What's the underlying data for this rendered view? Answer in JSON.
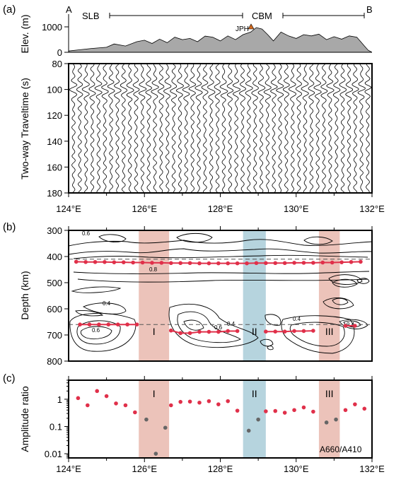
{
  "colors": {
    "hit_red": "#e0304a",
    "hit_gray": "#666666",
    "band_red": "#e9b9ae",
    "band_blue": "#a9cdd8",
    "topo_fill": "#a8a8a8",
    "trace": "#000000"
  },
  "chart_data": [
    {
      "panel": "(a)",
      "type": "area",
      "ylabel": "Elev. (m)",
      "ylim": [
        0,
        1400
      ],
      "yticks": [
        "0",
        "1000"
      ],
      "xlim": [
        124,
        132
      ],
      "end_labels": [
        "A",
        "B"
      ],
      "region_labels": [
        "SLB",
        "CBM"
      ],
      "station_label": "JPH",
      "x": [
        124.0,
        124.3,
        124.6,
        125.0,
        125.2,
        125.5,
        125.8,
        126.0,
        126.2,
        126.4,
        126.6,
        126.8,
        127.0,
        127.2,
        127.4,
        127.6,
        127.8,
        128.0,
        128.2,
        128.4,
        128.6,
        128.8,
        128.95,
        129.1,
        129.25,
        129.4,
        129.6,
        129.8,
        130.0,
        130.2,
        130.4,
        130.6,
        130.8,
        131.0,
        131.2,
        131.4,
        131.6,
        131.8,
        131.9,
        132.0
      ],
      "elevation_m": [
        50,
        100,
        150,
        200,
        330,
        250,
        420,
        480,
        350,
        520,
        380,
        600,
        500,
        550,
        420,
        640,
        600,
        450,
        650,
        500,
        700,
        800,
        980,
        920,
        700,
        450,
        800,
        650,
        550,
        700,
        650,
        720,
        500,
        620,
        520,
        650,
        600,
        250,
        80,
        0
      ]
    },
    {
      "panel": "(a)",
      "type": "line",
      "ylabel": "Two-way Traveltime (s)",
      "ylim": [
        80,
        180
      ],
      "yticks": [
        "80",
        "100",
        "120",
        "140",
        "160",
        "180"
      ],
      "xlim": [
        124,
        132
      ],
      "xticks": [
        "124°E",
        "126°E",
        "128°E",
        "130°E",
        "132°E"
      ],
      "trace_count": 48
    },
    {
      "panel": "(b)",
      "type": "scatter",
      "ylabel": "Depth (km)",
      "ylim": [
        300,
        800
      ],
      "yticks": [
        "300",
        "400",
        "500",
        "600",
        "700",
        "800"
      ],
      "xlim": [
        124,
        132
      ],
      "reference_depths_km": [
        410,
        660
      ],
      "contour_labels": [
        "0.6",
        "0.8",
        "0.4",
        "0.4",
        "0.6",
        "0.6",
        "0.4",
        "0.4"
      ],
      "zones": [
        {
          "label": "I",
          "x0": 125.85,
          "x1": 126.65,
          "color": "red"
        },
        {
          "label": "II",
          "x0": 128.6,
          "x1": 129.2,
          "color": "blue"
        },
        {
          "label": "III",
          "x0": 130.6,
          "x1": 131.15,
          "color": "red"
        }
      ],
      "series": [
        {
          "x": [
            124.2,
            124.45,
            124.7,
            124.95,
            125.2,
            125.45,
            125.7,
            125.95,
            126.2,
            126.45,
            126.7,
            126.95,
            127.2,
            127.45,
            127.7,
            127.95,
            128.2,
            128.45,
            128.7,
            128.95,
            129.2,
            129.45,
            129.7,
            129.95,
            130.2,
            130.45,
            130.7,
            130.95,
            131.2,
            131.45,
            131.7
          ],
          "y": [
            420,
            421,
            421,
            421,
            422,
            422,
            423,
            423,
            424,
            424,
            425,
            425,
            425,
            426,
            426,
            426,
            426,
            426,
            426,
            425,
            425,
            425,
            425,
            424,
            424,
            424,
            423,
            423,
            422,
            421,
            420
          ]
        },
        {
          "x": [
            124.3,
            124.55,
            124.8,
            125.05,
            125.3,
            125.55,
            125.8,
            126.7,
            126.95,
            127.2,
            127.45,
            127.7,
            127.95,
            128.2,
            128.45,
            129.2,
            129.45,
            129.7,
            129.95,
            130.2,
            130.45,
            131.3,
            131.55
          ],
          "y": [
            660,
            660,
            660,
            660,
            660,
            660,
            660,
            683,
            693,
            693,
            688,
            688,
            688,
            685,
            685,
            687,
            687,
            687,
            685,
            685,
            684,
            665,
            665
          ]
        }
      ]
    },
    {
      "panel": "(c)",
      "type": "scatter",
      "ylabel": "Amplitude ratio",
      "ylim": [
        0.007,
        5
      ],
      "yscale": "log",
      "yticks": [
        "0.01",
        "0.1",
        "1"
      ],
      "xlim": [
        124,
        132
      ],
      "xticks": [
        "124°E",
        "126°E",
        "128°E",
        "130°E",
        "132°E"
      ],
      "annotation": "A660/A410",
      "zones": [
        {
          "label": "I",
          "x0": 125.85,
          "x1": 126.65,
          "color": "red"
        },
        {
          "label": "II",
          "x0": 128.6,
          "x1": 129.2,
          "color": "blue"
        },
        {
          "label": "III",
          "x0": 130.6,
          "x1": 131.15,
          "color": "red"
        }
      ],
      "series": [
        {
          "color": "red",
          "x": [
            124.25,
            124.5,
            124.75,
            125.0,
            125.25,
            125.5,
            125.75,
            126.7,
            126.95,
            127.2,
            127.45,
            127.7,
            127.95,
            128.2,
            128.45,
            129.2,
            129.45,
            129.7,
            129.95,
            130.2,
            130.45,
            131.3,
            131.55,
            131.8
          ],
          "y": [
            1.1,
            0.6,
            2.0,
            1.3,
            0.7,
            0.6,
            0.33,
            0.6,
            0.8,
            0.82,
            0.75,
            0.85,
            0.65,
            0.85,
            0.38,
            0.36,
            0.37,
            0.32,
            0.4,
            0.5,
            0.35,
            0.4,
            0.65,
            0.45
          ]
        },
        {
          "color": "gray",
          "x": [
            126.05,
            126.3,
            126.55,
            128.75,
            129.0,
            130.8,
            131.05
          ],
          "y": [
            0.18,
            0.01,
            0.09,
            0.07,
            0.18,
            0.14,
            0.18
          ]
        }
      ]
    }
  ],
  "panel_labels": [
    "(a)",
    "(b)",
    "(c)"
  ]
}
